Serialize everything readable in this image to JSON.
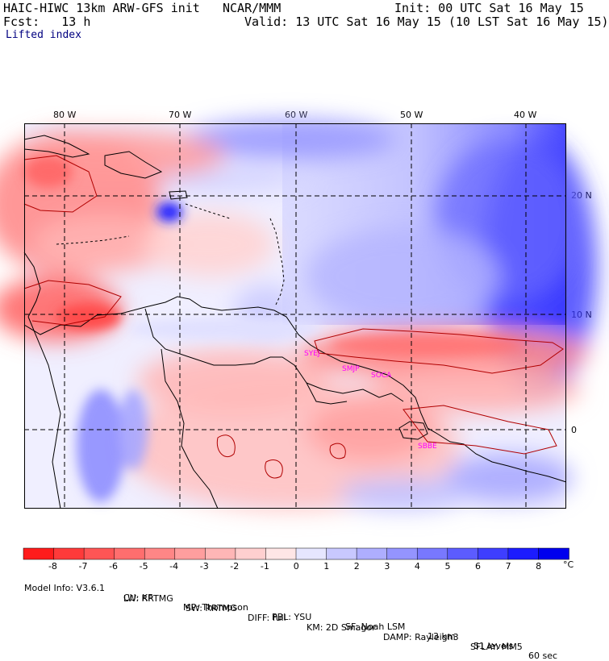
{
  "header": {
    "model_title": "HAIC-HIWC 13km ARW-GFS init",
    "org": "NCAR/MMM",
    "init": "Init: 00 UTC Sat 16 May 15",
    "fcst": "Fcst:   13 h",
    "valid": "Valid: 13 UTC Sat 16 May 15 (10 LST Sat 16 May 15)",
    "field": "Lifted index"
  },
  "map": {
    "lon_labels": [
      "80 W",
      "70 W",
      "60 W",
      "50 W",
      "40 W"
    ],
    "lat_labels": [
      "20 N",
      "10 N",
      "0"
    ],
    "stations": [
      "SYEJ",
      "SMJP",
      "SOCA",
      "SBBE"
    ],
    "station_color": "#ff00ff",
    "lon_range": [
      -83.5,
      -36.5
    ],
    "lat_range": [
      -6.5,
      26.5
    ]
  },
  "colorbar": {
    "tick_labels": [
      "-8",
      "-7",
      "-6",
      "-5",
      "-4",
      "-3",
      "-2",
      "-1",
      "0",
      "1",
      "2",
      "3",
      "4",
      "5",
      "6",
      "7",
      "8"
    ],
    "unit": "°C",
    "colors": [
      "#ff1c1c",
      "#ff3a3a",
      "#ff5555",
      "#ff6e6e",
      "#ff8686",
      "#ff9e9e",
      "#ffb6b6",
      "#ffcfcf",
      "#ffe6e6",
      "#e6e6ff",
      "#c8c8ff",
      "#aeaeff",
      "#9494ff",
      "#7878ff",
      "#5c5cff",
      "#3e3eff",
      "#1c1cff",
      "#0000ee"
    ]
  },
  "footer": {
    "line1": [
      "Model Info: V3.6.1",
      "CU: KF",
      "MP: Thompson",
      "PBL: YSU",
      "SF: Noah LSM",
      "13 km",
      "51 levels",
      "60 sec"
    ],
    "line2": [
      "LW: RRTMG",
      "SW: RRTMG",
      "DIFF: full",
      "KM: 2D Smagor",
      "DAMP: Rayleigh3",
      "SFLAY: MM5"
    ]
  }
}
